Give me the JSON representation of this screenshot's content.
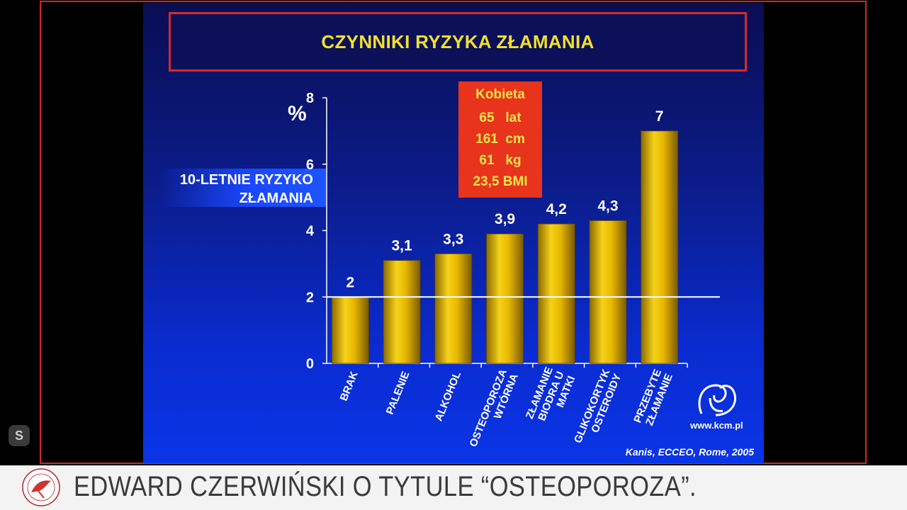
{
  "slide": {
    "title": "CZYNNIKI RYZYKA ZŁAMANIA",
    "y_axis_caption_lines": [
      "10-LETNIE RYZYKO",
      "ZŁAMANIA"
    ],
    "percent_symbol": "%",
    "source": "Kanis, ECCEO, Rome, 2005",
    "logo_text": "www.kcm.pl",
    "info_box": [
      {
        "label": "Kobieta"
      },
      {
        "value": "65",
        "unit": "lat"
      },
      {
        "value": "161",
        "unit": "cm"
      },
      {
        "value": "61",
        "unit": "kg"
      },
      {
        "value": "23,5",
        "unit": "BMI"
      }
    ]
  },
  "chart_data": {
    "type": "bar",
    "categories": [
      [
        "BRAK"
      ],
      [
        "PALENIE"
      ],
      [
        "ALKOHOL"
      ],
      [
        "OSTEOPOROZA",
        "WTÓRNA"
      ],
      [
        "ZŁAMANIE",
        "BIODRA U",
        "MATKI"
      ],
      [
        "GLIKOKORTYK",
        "OSTEROIDY"
      ],
      [
        "PRZEBYTE",
        "ZŁAMANIE"
      ]
    ],
    "values": [
      2,
      3.1,
      3.3,
      3.9,
      4.2,
      4.3,
      7
    ],
    "value_labels": [
      "2",
      "3,1",
      "3,3",
      "3,9",
      "4,2",
      "4,3",
      "7"
    ],
    "y_ticks": [
      "0",
      "2",
      "4",
      "6",
      "8"
    ],
    "ylim": [
      0,
      8
    ],
    "reference_line": 2,
    "bar_color": "#e8b800"
  },
  "footer": {
    "caption": "EDWARD CZERWIŃSKI O TYTULE “OSTEOPOROZA”."
  },
  "overlay": {
    "s_icon": "S"
  }
}
